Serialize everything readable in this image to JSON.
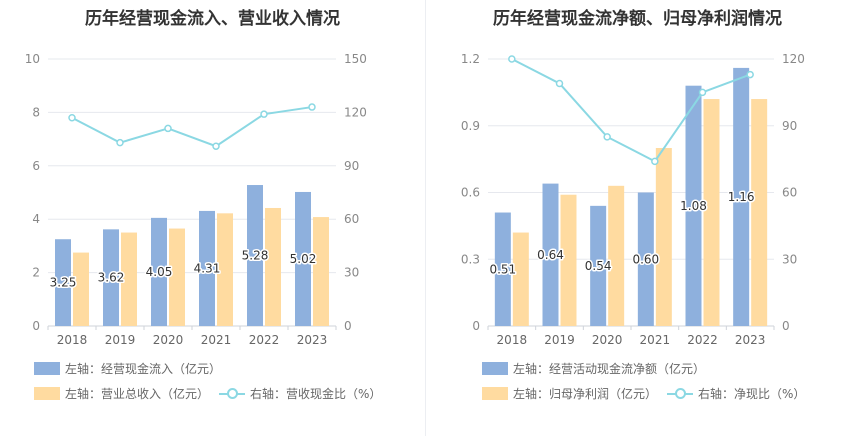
{
  "colors": {
    "bar1": "#8eb0dd",
    "bar2": "#ffdba0",
    "line": "#8bd8e3"
  },
  "chart_data": [
    {
      "type": "bar",
      "title": "历年经营现金流入、营业收入情况",
      "categories": [
        "2018",
        "2019",
        "2020",
        "2021",
        "2022",
        "2023"
      ],
      "left_axis": {
        "min": 0,
        "max": 10,
        "ticks": [
          "0",
          "2",
          "4",
          "6",
          "8",
          "10"
        ]
      },
      "right_axis": {
        "min": 0,
        "max": 150,
        "ticks": [
          "0",
          "30",
          "60",
          "90",
          "120",
          "150"
        ]
      },
      "series": [
        {
          "name": "左轴：经营现金流入（亿元）",
          "kind": "bar",
          "axis": "left",
          "values": [
            3.25,
            3.62,
            4.05,
            4.31,
            5.28,
            5.02
          ],
          "labels": [
            "3.25",
            "3.62",
            "4.05",
            "4.31",
            "5.28",
            "5.02"
          ]
        },
        {
          "name": "左轴：营业总收入（亿元）",
          "kind": "bar",
          "axis": "left",
          "values": [
            2.75,
            3.5,
            3.65,
            4.22,
            4.42,
            4.08
          ]
        },
        {
          "name": "右轴：营收现金比（%）",
          "kind": "line",
          "axis": "right",
          "values": [
            117,
            103,
            111,
            101,
            119,
            123
          ]
        }
      ]
    },
    {
      "type": "bar",
      "title": "历年经营现金流净额、归母净利润情况",
      "categories": [
        "2018",
        "2019",
        "2020",
        "2021",
        "2022",
        "2023"
      ],
      "left_axis": {
        "min": 0,
        "max": 1.2,
        "ticks": [
          "0",
          "0.3",
          "0.6",
          "0.9",
          "1.2"
        ]
      },
      "right_axis": {
        "min": 0,
        "max": 120,
        "ticks": [
          "0",
          "30",
          "60",
          "90",
          "120"
        ]
      },
      "series": [
        {
          "name": "左轴：经营活动现金流净额（亿元）",
          "kind": "bar",
          "axis": "left",
          "values": [
            0.51,
            0.64,
            0.54,
            0.6,
            1.08,
            1.16
          ],
          "labels": [
            "0.51",
            "0.64",
            "0.54",
            "0.60",
            "1.08",
            "1.16"
          ]
        },
        {
          "name": "左轴：归母净利润（亿元）",
          "kind": "bar",
          "axis": "left",
          "values": [
            0.42,
            0.59,
            0.63,
            0.8,
            1.02,
            1.02
          ]
        },
        {
          "name": "右轴：净现比（%）",
          "kind": "line",
          "axis": "right",
          "values": [
            120,
            109,
            85,
            74,
            105,
            113
          ]
        }
      ]
    }
  ]
}
